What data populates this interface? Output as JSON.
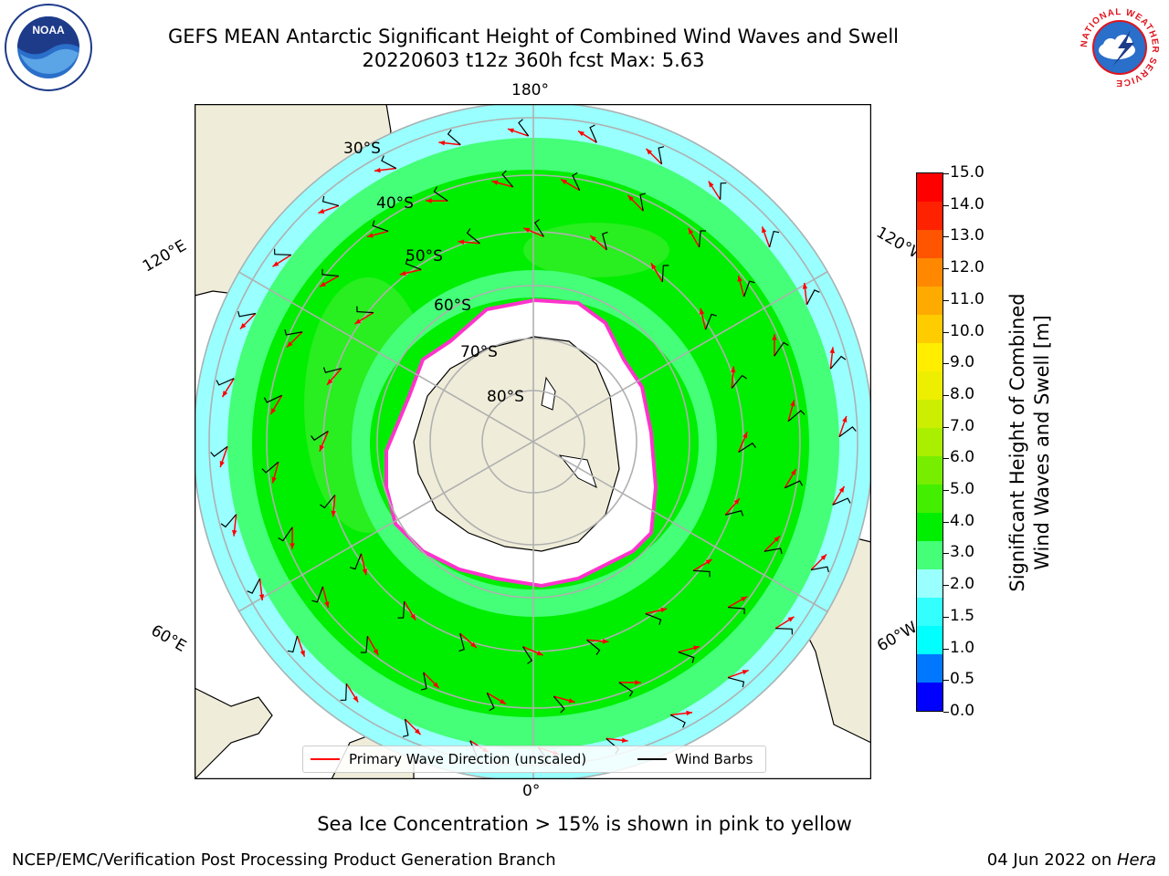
{
  "title": {
    "line1": "GEFS MEAN Antarctic Significant Height of Combined Wind Waves and Swell",
    "line2": "20220603 t12z 360h fcst   Max: 5.63"
  },
  "map_labels": {
    "lon": {
      "top": "180°",
      "bottom": "0°",
      "upper_left": "120°E",
      "upper_right": "120°W",
      "lower_left": "60°E",
      "lower_right": "60°W"
    },
    "lat": [
      "30°S",
      "40°S",
      "50°S",
      "60°S",
      "70°S",
      "80°S"
    ]
  },
  "legend": {
    "wave_label": "Primary Wave Direction (unscaled)",
    "barb_label": "Wind Barbs",
    "wave_color": "#ff0000",
    "barb_color": "#000000"
  },
  "colorbar": {
    "title_line1": "Significant Height of Combined",
    "title_line2": "Wind Waves and Swell [m]",
    "ticks": [
      "15.0",
      "14.0",
      "13.0",
      "12.0",
      "11.0",
      "10.0",
      "9.0",
      "8.0",
      "7.0",
      "6.0",
      "5.0",
      "4.0",
      "3.0",
      "2.0",
      "1.5",
      "1.0",
      "0.5",
      "0.0"
    ],
    "colors": [
      "#0000ff",
      "#0077ff",
      "#00ffff",
      "#33ffff",
      "#99ffff",
      "#44ff77",
      "#00ee00",
      "#44ee00",
      "#77ee00",
      "#aaee00",
      "#ccee00",
      "#eeee00",
      "#ffee00",
      "#ffcc00",
      "#ffaa00",
      "#ff8800",
      "#ff5500",
      "#ff2200",
      "#ff0000"
    ]
  },
  "notes": {
    "sea_ice": "Sea Ice Concentration > 15% is shown in pink to yellow",
    "footer_left": "NCEP/EMC/Verification Post Processing Product Generation Branch",
    "footer_date": "04 Jun 2022 on ",
    "footer_host": "Hera"
  },
  "logos": {
    "left": "NOAA",
    "right": "NATIONAL WEATHER SERVICE"
  }
}
